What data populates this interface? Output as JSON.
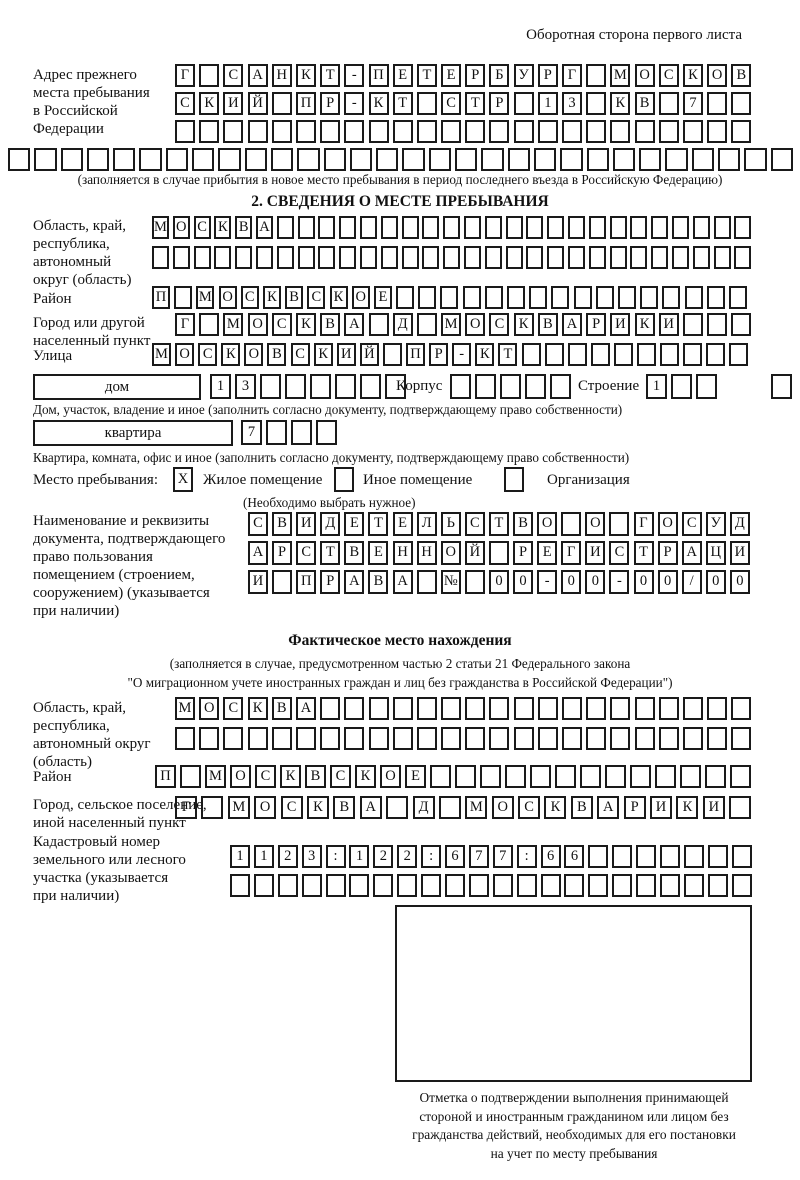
{
  "page": {
    "header_note": "Оборотная сторона первого листа"
  },
  "section1": {
    "label_lines": [
      "Адрес прежнего",
      "места пребывания",
      "в Российской",
      "Федерации"
    ],
    "caption": "(заполняется в случае прибытия в новое место пребывания в период последнего въезда в Российскую Федерацию)",
    "rows": {
      "line1": {
        "text": "Г САНКТ-ПЕТЕРБУРГ МОСКОВ",
        "len": 24
      },
      "line2": {
        "text": "СКИЙ ПР-КТ СТР 13 КВ 7",
        "len": 24
      },
      "line3": {
        "text": "",
        "len": 24
      },
      "line4": {
        "text": "",
        "len": 30
      }
    }
  },
  "section2": {
    "title": "2. СВЕДЕНИЯ О МЕСТЕ ПРЕБЫВАНИЯ",
    "region_label_lines": [
      "Область, край,",
      "республика,",
      "автономный",
      "округ (область)"
    ],
    "rayon_label": "Район",
    "city_label_lines": [
      "Город или другой",
      "населенный пункт"
    ],
    "street_label": "Улица",
    "rows": {
      "region1": {
        "text": "МОСКВА",
        "len": 29
      },
      "region2": {
        "text": "",
        "len": 29
      },
      "rayon": {
        "text": "П МОСКВСКОЕ",
        "len": 27
      },
      "city": {
        "text": "Г МОСКВА Д МОСКВАРИКИ",
        "len": 24
      },
      "street": {
        "text": "МОСКОВСКИЙ ПР-КТ",
        "len": 26
      },
      "house": {
        "text": "13",
        "len": 8
      },
      "korpus": {
        "text": "",
        "len": 5
      },
      "stroenie": {
        "text": "1",
        "len": 3
      },
      "stroenie2": {
        "text": "",
        "len": 1
      },
      "flat": {
        "text": "7",
        "len": 4
      },
      "doc1": {
        "text": "СВИДЕТЕЛЬСТВО О ГОСУД",
        "len": 21
      },
      "doc2": {
        "text": "АРСТВЕННОЙ РЕГИСТРАЦИ",
        "len": 21
      },
      "doc3": {
        "text": "И ПРАВА № 00-00-00/000",
        "len": 21
      }
    },
    "house_box_label": "дом",
    "korpus_label": "Корпус",
    "stroenie_label": "Строение",
    "house_caption": "Дом, участок, владение и иное (заполнить согласно документу, подтверждающему право собственности)",
    "flat_box_label": "квартира",
    "flat_caption": "Квартира, комната, офис и иное (заполнить согласно документу, подтверждающему право собственности)",
    "residence": {
      "label": "Место пребывания:",
      "option1": "Жилое помещение",
      "option2": "Иное помещение",
      "option3": "Организация",
      "check1": "X",
      "check2": "",
      "check3": "",
      "note": "(Необходимо выбрать нужное)"
    },
    "doc_label_lines": [
      "Наименование и реквизиты",
      "документа, подтверждающего",
      "право пользования",
      "помещением (строением,",
      "сооружением) (указывается",
      "при наличии)"
    ]
  },
  "fakt": {
    "title": "Фактическое место нахождения",
    "note_lines": [
      "(заполняется в случае, предусмотренном частью 2 статьи 21 Федерального закона",
      "\"О миграционном учете иностранных граждан и лиц без гражданства в Российской Федерации\")"
    ],
    "region_label_lines": [
      "Область, край,",
      "республика,",
      "автономный округ",
      "(область)"
    ],
    "rayon_label": "Район",
    "city_label_lines": [
      "Город, сельское поселение,",
      "иной населенный пункт"
    ],
    "kad_label_lines": [
      "Кадастровый номер",
      "земельного или лесного",
      "участка (указывается",
      "при наличии)"
    ],
    "rows": {
      "region1": {
        "text": "МОСКВА",
        "len": 24
      },
      "region2": {
        "text": "",
        "len": 24
      },
      "rayon": {
        "text": "П МОСКВСКОЕ",
        "len": 24
      },
      "city": {
        "text": "Г МОСКВА Д МОСКВАРИКИ",
        "len": 22
      },
      "kad1": {
        "text": "1123:122:677:66",
        "len": 22
      },
      "kad2": {
        "text": "",
        "len": 22
      }
    },
    "stamp_caption_lines": [
      "Отметка о подтверждении выполнения принимающей",
      "стороной и иностранным гражданином или лицом без",
      "гражданства действий, необходимых для его постановки",
      "на учет по месту пребывания"
    ]
  }
}
